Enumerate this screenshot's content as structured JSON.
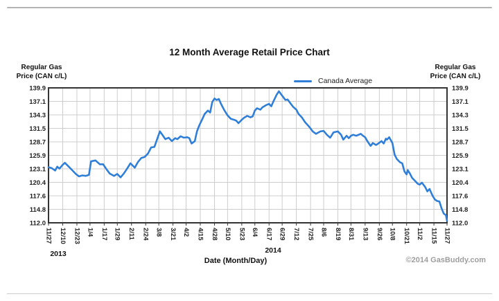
{
  "title": "12 Month Average Retail Price Chart",
  "legend": {
    "label": "Canada Average"
  },
  "axes": {
    "left_title_line1": "Regular Gas",
    "left_title_line2": "Price (CAN c/L)",
    "right_title_line1": "Regular Gas",
    "right_title_line2": "Price (CAN c/L)",
    "x_title": "Date (Month/Day)",
    "year_left": "2013",
    "year_right": "2014"
  },
  "footer": {
    "copyright": "©2014 GasBuddy.com"
  },
  "colors": {
    "line": "#2f7ed8",
    "grid": "#cdcdcd",
    "frame": "#333333",
    "tick_text": "#222222"
  },
  "chart_data": {
    "type": "line",
    "title": "12 Month Average Retail Price Chart",
    "xlabel": "Date (Month/Day)",
    "ylabel": "Regular Gas Price (CAN c/L)",
    "legend_position": "top-right",
    "grid": true,
    "ylim": [
      112.0,
      139.9
    ],
    "y_tick_labels": [
      "139.9",
      "137.1",
      "134.3",
      "131.5",
      "128.7",
      "125.9",
      "123.1",
      "120.4",
      "117.6",
      "114.8",
      "112.0"
    ],
    "x_tick_labels": [
      "11/27",
      "12/10",
      "12/23",
      "1/4",
      "1/17",
      "1/29",
      "2/11",
      "2/24",
      "3/8",
      "3/21",
      "4/2",
      "4/15",
      "4/28",
      "5/10",
      "5/23",
      "6/4",
      "6/17",
      "6/29",
      "7/12",
      "7/25",
      "8/6",
      "8/19",
      "8/31",
      "9/13",
      "9/26",
      "10/8",
      "10/21",
      "11/2",
      "11/15",
      "11/27"
    ],
    "x_tick_days": [
      0,
      13,
      26,
      38,
      51,
      63,
      76,
      89,
      101,
      114,
      126,
      139,
      152,
      164,
      177,
      189,
      202,
      214,
      227,
      240,
      252,
      265,
      277,
      290,
      303,
      315,
      328,
      340,
      353,
      365
    ],
    "x_range_days": [
      0,
      365
    ],
    "series": [
      {
        "name": "Canada Average",
        "color": "#2f7ed8",
        "points_day_value": [
          [
            0,
            123.5
          ],
          [
            3,
            123.3
          ],
          [
            6,
            122.8
          ],
          [
            8,
            123.6
          ],
          [
            10,
            123.2
          ],
          [
            13,
            124.0
          ],
          [
            15,
            124.4
          ],
          [
            19,
            123.5
          ],
          [
            22,
            122.8
          ],
          [
            25,
            122.1
          ],
          [
            28,
            121.6
          ],
          [
            31,
            121.8
          ],
          [
            34,
            121.7
          ],
          [
            37,
            121.9
          ],
          [
            39,
            124.7
          ],
          [
            43,
            124.9
          ],
          [
            47,
            124.1
          ],
          [
            50,
            124.1
          ],
          [
            53,
            123.1
          ],
          [
            56,
            122.2
          ],
          [
            60,
            121.7
          ],
          [
            63,
            122.1
          ],
          [
            66,
            121.4
          ],
          [
            69,
            122.2
          ],
          [
            72,
            123.2
          ],
          [
            75,
            124.3
          ],
          [
            79,
            123.4
          ],
          [
            82,
            124.6
          ],
          [
            85,
            125.4
          ],
          [
            88,
            125.6
          ],
          [
            91,
            126.3
          ],
          [
            94,
            127.6
          ],
          [
            97,
            127.7
          ],
          [
            99,
            129.0
          ],
          [
            102,
            130.9
          ],
          [
            104,
            130.3
          ],
          [
            107,
            129.3
          ],
          [
            110,
            129.6
          ],
          [
            113,
            128.9
          ],
          [
            116,
            129.5
          ],
          [
            118,
            129.3
          ],
          [
            121,
            129.9
          ],
          [
            124,
            129.6
          ],
          [
            127,
            129.7
          ],
          [
            129,
            129.5
          ],
          [
            131,
            128.4
          ],
          [
            134,
            128.9
          ],
          [
            136,
            130.9
          ],
          [
            138,
            132.1
          ],
          [
            141,
            133.5
          ],
          [
            143,
            134.5
          ],
          [
            146,
            135.2
          ],
          [
            148,
            134.8
          ],
          [
            150,
            137.0
          ],
          [
            152,
            137.7
          ],
          [
            154,
            137.4
          ],
          [
            156,
            137.6
          ],
          [
            158,
            136.6
          ],
          [
            161,
            135.3
          ],
          [
            164,
            134.2
          ],
          [
            167,
            133.5
          ],
          [
            170,
            133.3
          ],
          [
            172,
            133.1
          ],
          [
            174,
            132.6
          ],
          [
            177,
            133.3
          ],
          [
            179,
            133.7
          ],
          [
            182,
            134.1
          ],
          [
            185,
            133.8
          ],
          [
            187,
            134.0
          ],
          [
            189,
            135.2
          ],
          [
            191,
            135.7
          ],
          [
            194,
            135.4
          ],
          [
            196,
            135.9
          ],
          [
            199,
            136.3
          ],
          [
            202,
            136.6
          ],
          [
            204,
            136.1
          ],
          [
            206,
            137.1
          ],
          [
            209,
            138.5
          ],
          [
            211,
            139.2
          ],
          [
            213,
            138.6
          ],
          [
            215,
            138.0
          ],
          [
            217,
            137.4
          ],
          [
            219,
            137.5
          ],
          [
            222,
            136.6
          ],
          [
            224,
            136.0
          ],
          [
            227,
            135.4
          ],
          [
            229,
            134.5
          ],
          [
            232,
            133.8
          ],
          [
            235,
            132.8
          ],
          [
            237,
            132.3
          ],
          [
            239,
            131.8
          ],
          [
            242,
            130.9
          ],
          [
            245,
            130.4
          ],
          [
            249,
            130.9
          ],
          [
            252,
            131.0
          ],
          [
            255,
            130.2
          ],
          [
            258,
            129.6
          ],
          [
            261,
            130.7
          ],
          [
            265,
            130.9
          ],
          [
            268,
            130.2
          ],
          [
            270,
            129.2
          ],
          [
            273,
            130.0
          ],
          [
            275,
            129.5
          ],
          [
            277,
            130.0
          ],
          [
            279,
            130.2
          ],
          [
            282,
            130.0
          ],
          [
            286,
            130.4
          ],
          [
            288,
            130.0
          ],
          [
            290,
            129.7
          ],
          [
            292,
            128.9
          ],
          [
            295,
            127.9
          ],
          [
            297,
            128.5
          ],
          [
            300,
            128.1
          ],
          [
            302,
            128.4
          ],
          [
            305,
            128.9
          ],
          [
            307,
            128.4
          ],
          [
            309,
            129.4
          ],
          [
            310,
            129.2
          ],
          [
            312,
            129.7
          ],
          [
            315,
            128.5
          ],
          [
            317,
            126.1
          ],
          [
            319,
            125.2
          ],
          [
            322,
            124.5
          ],
          [
            324,
            124.3
          ],
          [
            326,
            122.6
          ],
          [
            328,
            122.0
          ],
          [
            329,
            122.9
          ],
          [
            331,
            122.2
          ],
          [
            333,
            121.3
          ],
          [
            336,
            120.6
          ],
          [
            338,
            120.1
          ],
          [
            340,
            119.9
          ],
          [
            342,
            120.3
          ],
          [
            345,
            119.4
          ],
          [
            347,
            118.5
          ],
          [
            349,
            119.0
          ],
          [
            351,
            118.0
          ],
          [
            352,
            117.5
          ],
          [
            354,
            116.8
          ],
          [
            356,
            116.5
          ],
          [
            358,
            116.4
          ],
          [
            360,
            115.0
          ],
          [
            362,
            113.9
          ],
          [
            364,
            113.6
          ],
          [
            365,
            112.4
          ]
        ]
      }
    ]
  }
}
